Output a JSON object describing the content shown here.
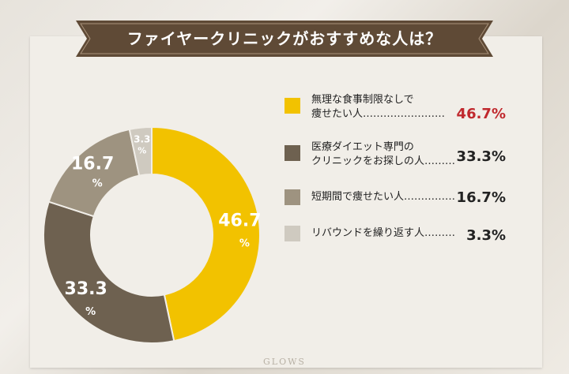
{
  "header": {
    "title": "ファイヤークリニックがおすすめな人は？"
  },
  "chart_data": {
    "type": "pie",
    "categories": [
      "無理な食事制限なしで痩せたい人",
      "医療ダイエット専門のクリニックをお探しの人",
      "短期間で痩せたい人",
      "リバウンドを繰り返す人"
    ],
    "values": [
      46.7,
      33.3,
      16.7,
      3.3
    ],
    "value_labels": [
      "46.7",
      "33.3",
      "16.7",
      "3.3"
    ],
    "unit": "%",
    "colors": [
      "#f2c200",
      "#6e6150",
      "#9e9380",
      "#cfcac0"
    ],
    "legend_placement": "right"
  },
  "legend": {
    "items": [
      {
        "label": "無理な食事制限なしで\n痩せたい人……………………",
        "value": "46.7%",
        "color": "#f2c200",
        "value_color": "#c0282d"
      },
      {
        "label": "医療ダイエット専門の\nクリニックをお探しの人………",
        "value": "33.3%",
        "color": "#6e6150",
        "value_color": "#222222"
      },
      {
        "label": "短期間で痩せたい人……………",
        "value": "16.7%",
        "color": "#9e9380",
        "value_color": "#222222"
      },
      {
        "label": "リバウンドを繰り返す人………",
        "value": "3.3%",
        "color": "#cfcac0",
        "value_color": "#222222"
      }
    ]
  },
  "footer": {
    "watermark": "GLOWS"
  },
  "colors": {
    "banner": "#5f4a36",
    "panel": "#f1eee8"
  }
}
